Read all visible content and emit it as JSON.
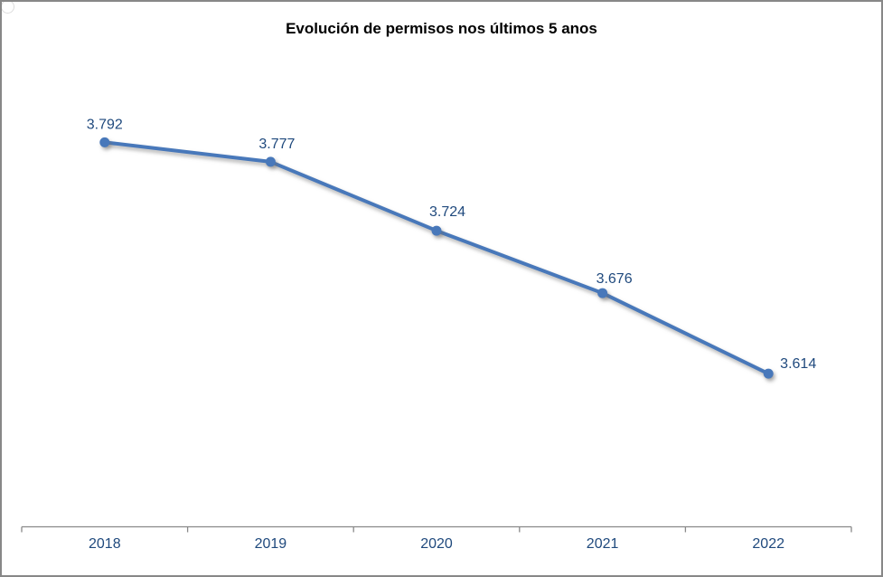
{
  "window": {
    "background": "#ffffff",
    "border_color": "#878787"
  },
  "chart_data": {
    "type": "line",
    "title": "Evolución de permisos nos últimos 5 anos",
    "categories": [
      "2018",
      "2019",
      "2020",
      "2021",
      "2022"
    ],
    "values": [
      3792,
      3777,
      3724,
      3676,
      3614
    ],
    "point_labels": [
      "3.792",
      "3.777",
      "3.724",
      "3.676",
      "3.614"
    ],
    "xlabel": "",
    "ylabel": "",
    "ylim": [
      3500,
      3850
    ],
    "grid": false,
    "legend_position": "none",
    "y_axis_visible": false,
    "colors": {
      "line": "#4878ba",
      "marker": "#4878ba",
      "data_label": "#1f497d",
      "axis_label": "#1f497d",
      "axis_line": "#898989",
      "title": "#000000"
    }
  }
}
